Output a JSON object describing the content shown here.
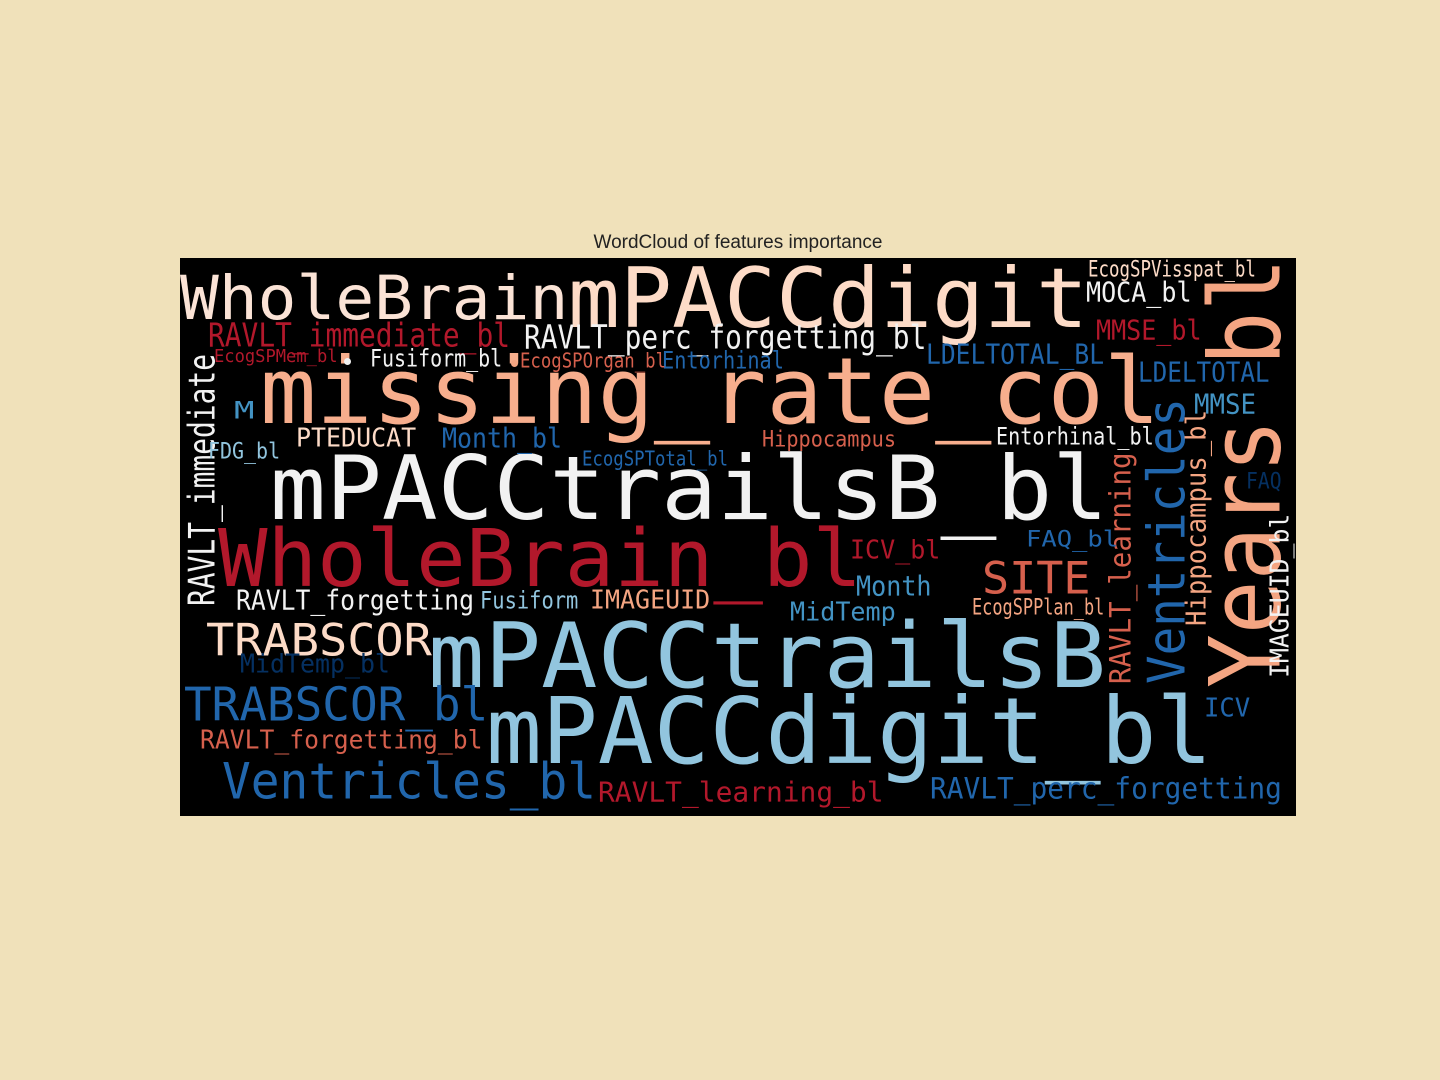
{
  "title": "WordCloud of features importance",
  "colors": {
    "background": "#F0E1BA",
    "panel": "#000000",
    "title_text": "#222222"
  },
  "chart_data": {
    "type": "wordcloud",
    "title": "WordCloud of features importance",
    "colormap": "RdBu",
    "words": [
      {
        "text": "missing_rate_col",
        "weight": 0.98,
        "color": "#F7AE8D",
        "orientation": "horizontal"
      },
      {
        "text": "mPACCdigit",
        "weight": 0.96,
        "color": "#FDDBC7",
        "orientation": "horizontal"
      },
      {
        "text": "mPACCtrailsB_bl",
        "weight": 0.95,
        "color": "#F2F2F2",
        "orientation": "horizontal"
      },
      {
        "text": "mPACCtrailsB",
        "weight": 0.93,
        "color": "#92C5DE",
        "orientation": "horizontal"
      },
      {
        "text": "mPACCdigit_bl",
        "weight": 0.92,
        "color": "#92C5DE",
        "orientation": "horizontal"
      },
      {
        "text": "WholeBrain_bl",
        "weight": 0.88,
        "color": "#B2182B",
        "orientation": "horizontal"
      },
      {
        "text": "Years_bl",
        "weight": 0.86,
        "color": "#F4A582",
        "orientation": "vertical"
      },
      {
        "text": "WholeBrain",
        "weight": 0.72,
        "color": "#FBE3D6",
        "orientation": "horizontal"
      },
      {
        "text": "Ventricles",
        "weight": 0.58,
        "color": "#2166AC",
        "orientation": "vertical"
      },
      {
        "text": "Ventricles_bl",
        "weight": 0.55,
        "color": "#2166AC",
        "orientation": "horizontal"
      },
      {
        "text": "TRABSCOR",
        "weight": 0.55,
        "color": "#FDDBC7",
        "orientation": "horizontal"
      },
      {
        "text": "TRABSCOR_bl",
        "weight": 0.54,
        "color": "#2166AC",
        "orientation": "horizontal"
      },
      {
        "text": "SITE",
        "weight": 0.52,
        "color": "#D6604D",
        "orientation": "horizontal"
      },
      {
        "text": "RAVLT_perc_forgetting_bl",
        "weight": 0.38,
        "color": "#F2F2F2",
        "orientation": "horizontal"
      },
      {
        "text": "RAVLT_immediate_bl",
        "weight": 0.38,
        "color": "#B2182B",
        "orientation": "horizontal"
      },
      {
        "text": "RAVLT_learning",
        "weight": 0.37,
        "color": "#D6604D",
        "orientation": "vertical"
      },
      {
        "text": "RAVLT_immediate",
        "weight": 0.36,
        "color": "#F2F2F2",
        "orientation": "vertical"
      },
      {
        "text": "RAVLT_perc_forgetting",
        "weight": 0.33,
        "color": "#2166AC",
        "orientation": "horizontal"
      },
      {
        "text": "RAVLT_learning_bl",
        "weight": 0.33,
        "color": "#B2182B",
        "orientation": "horizontal"
      },
      {
        "text": "Hippocampus_bl",
        "weight": 0.31,
        "color": "#F4A582",
        "orientation": "vertical"
      },
      {
        "text": "IMAGEUID_bl",
        "weight": 0.31,
        "color": "#F2F2F2",
        "orientation": "vertical"
      },
      {
        "text": "RAVLT_forgetting",
        "weight": 0.3,
        "color": "#F2F2F2",
        "orientation": "horizontal"
      },
      {
        "text": "RAVLT_forgetting_bl",
        "weight": 0.3,
        "color": "#D6604D",
        "orientation": "horizontal"
      },
      {
        "text": "LDELTOTAL_BL",
        "weight": 0.3,
        "color": "#2166AC",
        "orientation": "horizontal"
      },
      {
        "text": "LDELTOTAL",
        "weight": 0.3,
        "color": "#2166AC",
        "orientation": "horizontal"
      },
      {
        "text": "MOCA_bl",
        "weight": 0.28,
        "color": "#F2F2F2",
        "orientation": "horizontal"
      },
      {
        "text": "MMSE_bl",
        "weight": 0.28,
        "color": "#B2182B",
        "orientation": "horizontal"
      },
      {
        "text": "MMSE",
        "weight": 0.28,
        "color": "#4393C3",
        "orientation": "horizontal"
      },
      {
        "text": "Month_bl",
        "weight": 0.28,
        "color": "#2166AC",
        "orientation": "horizontal"
      },
      {
        "text": "Month",
        "weight": 0.27,
        "color": "#4393C3",
        "orientation": "horizontal"
      },
      {
        "text": "PTEDUCAT",
        "weight": 0.27,
        "color": "#FDDBC7",
        "orientation": "horizontal"
      },
      {
        "text": "IMAGEUID",
        "weight": 0.27,
        "color": "#F4A582",
        "orientation": "horizontal"
      },
      {
        "text": "ICV_bl",
        "weight": 0.27,
        "color": "#B2182B",
        "orientation": "horizontal"
      },
      {
        "text": "ICV",
        "weight": 0.27,
        "color": "#2166AC",
        "orientation": "horizontal"
      },
      {
        "text": "MidTemp",
        "weight": 0.26,
        "color": "#4393C3",
        "orientation": "horizontal"
      },
      {
        "text": "MidTemp_bl",
        "weight": 0.26,
        "color": "#053061",
        "orientation": "horizontal"
      },
      {
        "text": "M",
        "weight": 0.26,
        "color": "#4393C3",
        "orientation": "horizontal"
      },
      {
        "text": "Entorhinal_bl",
        "weight": 0.25,
        "color": "#F2F2F2",
        "orientation": "horizontal"
      },
      {
        "text": "Entorhinal",
        "weight": 0.25,
        "color": "#2166AC",
        "orientation": "horizontal"
      },
      {
        "text": "Fusiform_bl",
        "weight": 0.24,
        "color": "#F2F2F2",
        "orientation": "horizontal"
      },
      {
        "text": "Fusiform",
        "weight": 0.24,
        "color": "#92C5DE",
        "orientation": "horizontal"
      },
      {
        "text": "Hippocampus",
        "weight": 0.23,
        "color": "#D6604D",
        "orientation": "horizontal"
      },
      {
        "text": "FDG_bl",
        "weight": 0.23,
        "color": "#92C5DE",
        "orientation": "horizontal"
      },
      {
        "text": "FAQ_bl",
        "weight": 0.22,
        "color": "#2166AC",
        "orientation": "horizontal"
      },
      {
        "text": "FAQ",
        "weight": 0.22,
        "color": "#053061",
        "orientation": "horizontal"
      },
      {
        "text": "EcogSPVisspat_bl",
        "weight": 0.2,
        "color": "#FDDBC7",
        "orientation": "horizontal"
      },
      {
        "text": "EcogSPPlan_bl",
        "weight": 0.2,
        "color": "#F4A582",
        "orientation": "horizontal"
      },
      {
        "text": "EcogSPTotal_bl",
        "weight": 0.2,
        "color": "#2166AC",
        "orientation": "horizontal"
      },
      {
        "text": "EcogSPOrgan_bl",
        "weight": 0.2,
        "color": "#D6604D",
        "orientation": "horizontal"
      },
      {
        "text": "EcogSPMem_bl",
        "weight": 0.18,
        "color": "#B2182B",
        "orientation": "horizontal"
      }
    ]
  }
}
